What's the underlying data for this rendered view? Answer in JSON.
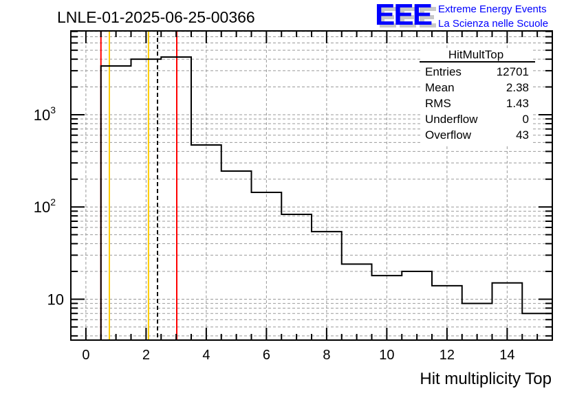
{
  "header": {
    "run_title": "LNLE-01-2025-06-25-00366",
    "logo_text": "EEE",
    "logo_line1": "Extreme Energy Events",
    "logo_line2": "La Scienza nelle Scuole"
  },
  "stats": {
    "name": "HitMultTop",
    "rows": [
      {
        "label": "Entries",
        "value": "12701"
      },
      {
        "label": "Mean",
        "value": "2.38"
      },
      {
        "label": "RMS",
        "value": "1.43"
      },
      {
        "label": "Underflow",
        "value": "0"
      },
      {
        "label": "Overflow",
        "value": "43"
      }
    ]
  },
  "chart_data": {
    "type": "bar",
    "style": "step-histogram",
    "title": "LNLE-01-2025-06-25-00366",
    "xlabel": "Hit multiplicity Top",
    "ylabel": "",
    "xlim": [
      -0.5,
      15.5
    ],
    "ylim": [
      3.6,
      8100
    ],
    "yscale": "log",
    "grid": true,
    "bin_edges": [
      -0.5,
      0.5,
      1.5,
      2.5,
      3.5,
      4.5,
      5.5,
      6.5,
      7.5,
      8.5,
      9.5,
      10.5,
      11.5,
      12.5,
      13.5,
      14.5,
      15.5
    ],
    "values": [
      0,
      3380,
      4000,
      4220,
      470,
      245,
      144,
      83,
      54,
      24,
      18,
      20,
      14,
      9,
      15,
      7
    ],
    "x_ticks": [
      "0",
      "2",
      "4",
      "6",
      "8",
      "10",
      "12",
      "14"
    ],
    "x_tick_values": [
      0,
      2,
      4,
      6,
      8,
      10,
      12,
      14
    ],
    "y_ticks": [
      {
        "value": 10,
        "base": "10",
        "exp": ""
      },
      {
        "value": 100,
        "base": "10",
        "exp": "2"
      },
      {
        "value": 1000,
        "base": "10",
        "exp": "3"
      }
    ],
    "vertical_lines": [
      {
        "x": 0.5,
        "color": "#ff0000",
        "style": "solid"
      },
      {
        "x": 0.78,
        "color": "#ffcc00",
        "style": "solid"
      },
      {
        "x": 2.08,
        "color": "#ffcc00",
        "style": "solid"
      },
      {
        "x": 2.38,
        "color": "#000000",
        "style": "dashed"
      },
      {
        "x": 3.02,
        "color": "#ff0000",
        "style": "solid"
      }
    ],
    "legend_placement": "top-right"
  },
  "colors": {
    "logo": "#0000ff",
    "logo_shadow": "#c8c8c8",
    "grid": "#999999"
  }
}
